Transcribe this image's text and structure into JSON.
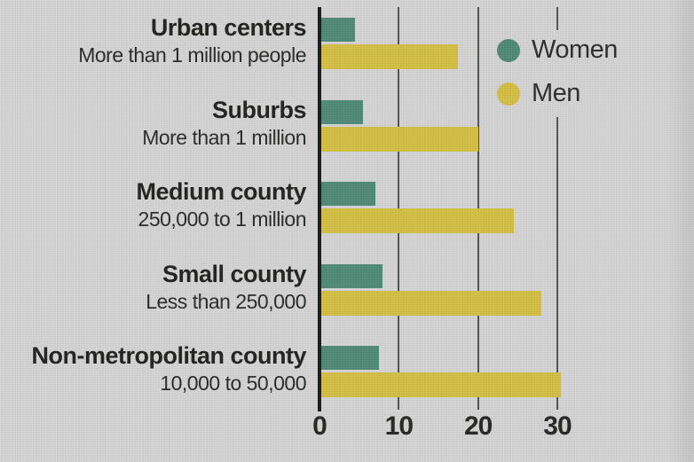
{
  "page": {
    "background_color": "#d5d4d5",
    "text_color": "#1d1d1b"
  },
  "legend": {
    "items": [
      {
        "name": "women",
        "label": "Women",
        "color": "#4c8874",
        "swatch": "circle-icon"
      },
      {
        "name": "men",
        "label": "Men",
        "color": "#d4bf41",
        "swatch": "circle-icon"
      }
    ]
  },
  "chart_data": {
    "type": "bar",
    "orientation": "horizontal",
    "categories": [
      "Urban centers",
      "Suburbs",
      "Medium county",
      "Small county",
      "Non-metropolitan county"
    ],
    "category_sublabels": [
      "More than 1 million people",
      "More than 1 million",
      "250,000 to 1 million",
      "Less than 250,000",
      "10,000 to 50,000"
    ],
    "series": [
      {
        "name": "Women",
        "color": "#4c8874",
        "values": [
          4.5,
          5.5,
          7,
          8,
          7.5
        ]
      },
      {
        "name": "Men",
        "color": "#d4bf41",
        "values": [
          17.5,
          20,
          24.5,
          28,
          30.5
        ]
      }
    ],
    "x_axis": {
      "ticks": [
        0,
        10,
        20,
        30
      ],
      "min": 0,
      "max": 40,
      "gridlines": [
        10,
        20,
        30
      ],
      "axis_color": "#161614"
    },
    "legend_position": "top-right",
    "grid": true
  }
}
